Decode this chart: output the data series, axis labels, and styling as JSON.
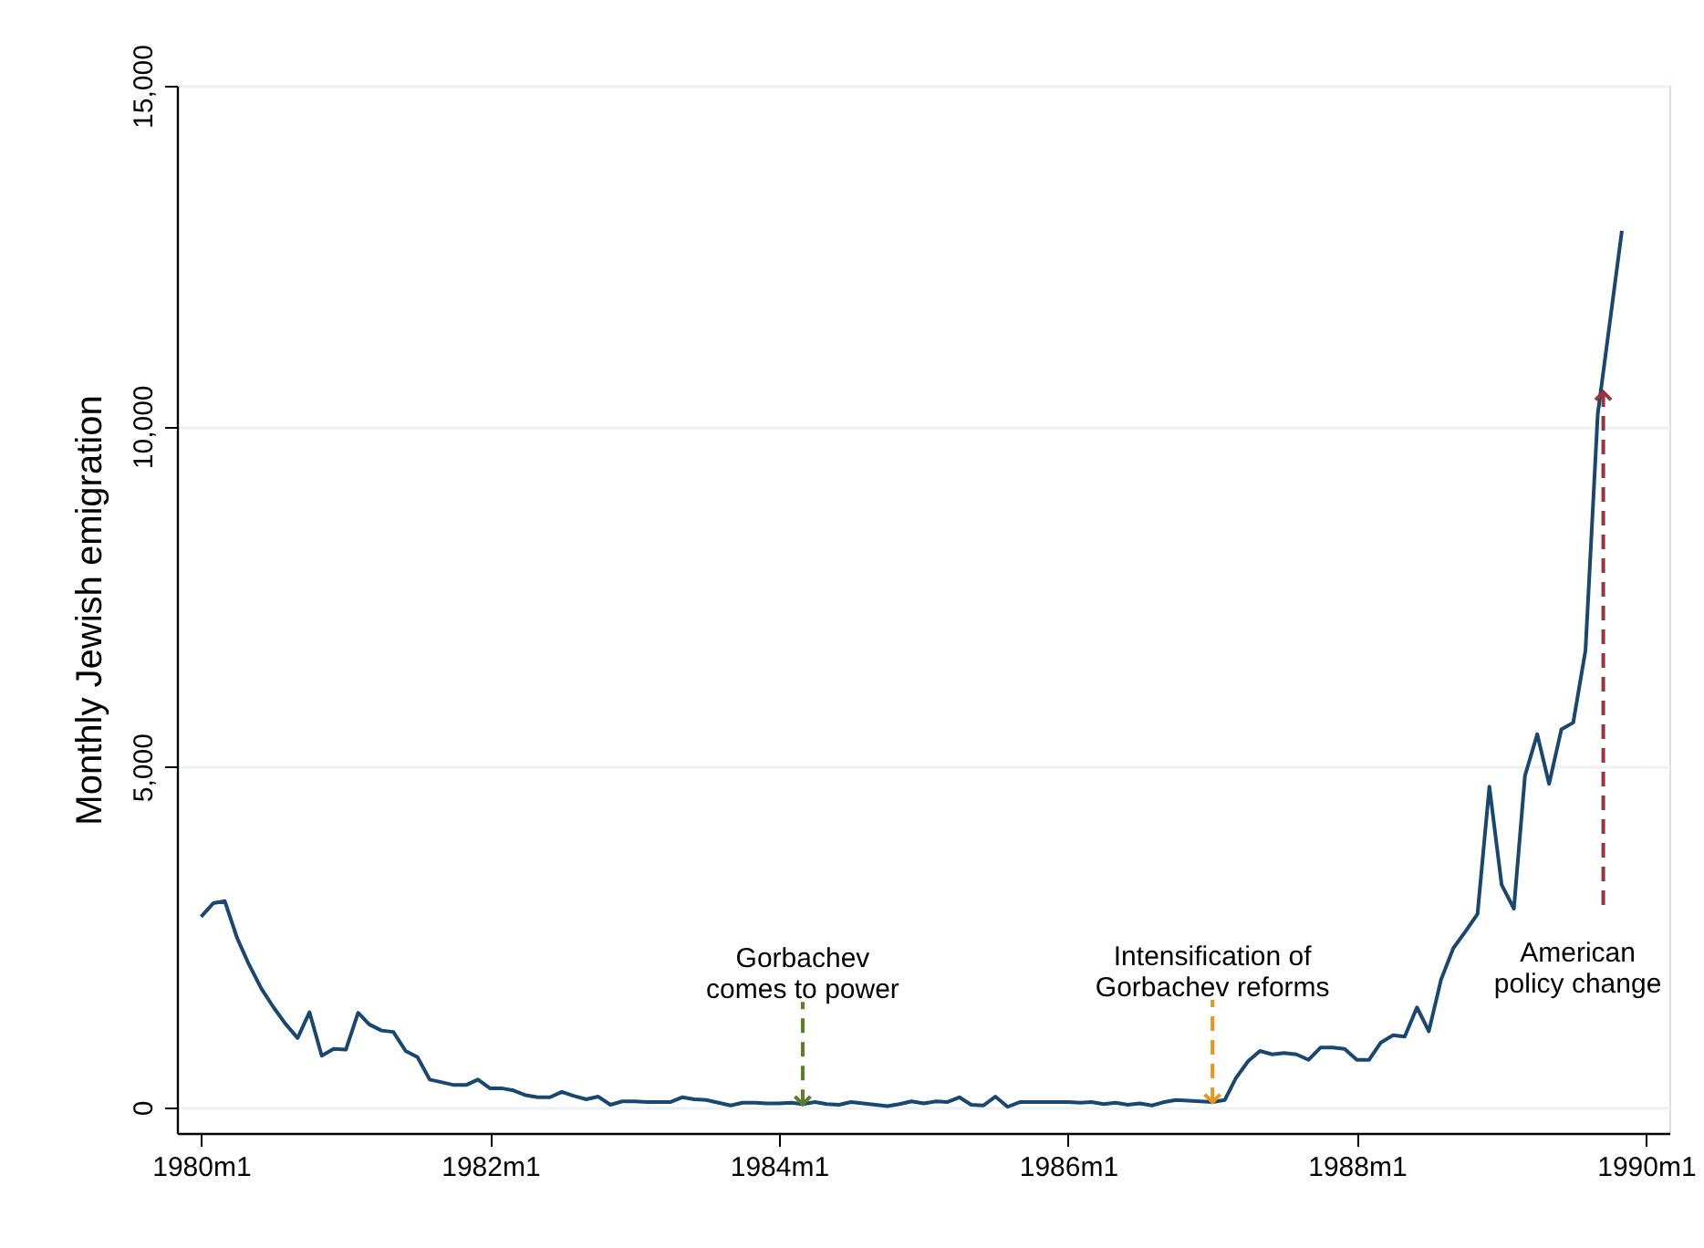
{
  "chart_data": {
    "type": "line",
    "ylabel": "Monthly Jewish emigration",
    "x": [
      "1980-01",
      "1980-02",
      "1980-03",
      "1980-04",
      "1980-05",
      "1980-06",
      "1980-07",
      "1980-08",
      "1980-09",
      "1980-10",
      "1980-11",
      "1980-12",
      "1981-01",
      "1981-02",
      "1981-03",
      "1981-04",
      "1981-05",
      "1981-06",
      "1981-07",
      "1981-08",
      "1981-09",
      "1981-10",
      "1981-11",
      "1981-12",
      "1982-01",
      "1982-02",
      "1982-03",
      "1982-04",
      "1982-05",
      "1982-06",
      "1982-07",
      "1982-08",
      "1982-09",
      "1982-10",
      "1982-11",
      "1982-12",
      "1983-01",
      "1983-02",
      "1983-03",
      "1983-04",
      "1983-05",
      "1983-06",
      "1983-07",
      "1983-08",
      "1983-09",
      "1983-10",
      "1983-11",
      "1983-12",
      "1984-01",
      "1984-02",
      "1984-03",
      "1984-04",
      "1984-05",
      "1984-06",
      "1984-07",
      "1984-08",
      "1984-09",
      "1984-10",
      "1984-11",
      "1984-12",
      "1985-01",
      "1985-02",
      "1985-03",
      "1985-04",
      "1985-05",
      "1985-06",
      "1985-07",
      "1985-08",
      "1985-09",
      "1985-10",
      "1985-11",
      "1985-12",
      "1986-01",
      "1986-02",
      "1986-03",
      "1986-04",
      "1986-05",
      "1986-06",
      "1986-07",
      "1986-08",
      "1986-09",
      "1986-10",
      "1986-11",
      "1986-12",
      "1987-01",
      "1987-02",
      "1987-03",
      "1987-04",
      "1987-05",
      "1987-06",
      "1987-07",
      "1987-08",
      "1987-09",
      "1987-10",
      "1987-11",
      "1987-12",
      "1988-01",
      "1988-02",
      "1988-03",
      "1988-04",
      "1988-05",
      "1988-06",
      "1988-07",
      "1988-08",
      "1988-09",
      "1988-10",
      "1988-11",
      "1988-12",
      "1989-01",
      "1989-02",
      "1989-03",
      "1989-04",
      "1989-05",
      "1989-06",
      "1989-07",
      "1989-08",
      "1989-09",
      "1989-10",
      "1989-11"
    ],
    "series": [
      {
        "color": "#1a476f",
        "values": [
          2800,
          3000,
          3030,
          2490,
          2100,
          1750,
          1480,
          1230,
          1020,
          1400,
          760,
          860,
          850,
          1390,
          1220,
          1130,
          1110,
          830,
          740,
          410,
          370,
          330,
          330,
          410,
          280,
          280,
          250,
          180,
          150,
          150,
          230,
          170,
          120,
          160,
          40,
          90,
          90,
          80,
          80,
          80,
          150,
          120,
          110,
          70,
          30,
          70,
          70,
          60,
          60,
          70,
          50,
          80,
          50,
          40,
          80,
          60,
          40,
          20,
          50,
          90,
          60,
          90,
          80,
          150,
          40,
          30,
          160,
          10,
          80,
          80,
          80,
          80,
          80,
          70,
          80,
          50,
          70,
          40,
          60,
          30,
          80,
          110,
          100,
          90,
          80,
          110,
          430,
          680,
          830,
          780,
          800,
          780,
          700,
          880,
          880,
          860,
          700,
          700,
          950,
          1060,
          1040,
          1470,
          1120,
          1880,
          2340,
          2580,
          2840,
          4710,
          3270,
          2920,
          4870,
          5480,
          4750,
          5550,
          5650,
          6710,
          10180,
          11500,
          12870
        ]
      }
    ],
    "xlim": [
      "1979-11",
      "1990-03"
    ],
    "xticks": [
      {
        "value": "1980-01",
        "label": "1980m1"
      },
      {
        "value": "1982-01",
        "label": "1982m1"
      },
      {
        "value": "1984-01",
        "label": "1984m1"
      },
      {
        "value": "1986-01",
        "label": "1986m1"
      },
      {
        "value": "1988-01",
        "label": "1988m1"
      },
      {
        "value": "1990-01",
        "label": "1990m1"
      }
    ],
    "ylim": [
      -375,
      15000
    ],
    "yticks": [
      {
        "value": 0,
        "label": "0"
      },
      {
        "value": 5000,
        "label": "5,000"
      },
      {
        "value": 10000,
        "label": "10,000"
      },
      {
        "value": 15000,
        "label": "15,000"
      }
    ],
    "grid": "y",
    "marker": "none",
    "line_style": "solid",
    "annotations": [
      {
        "text": "Gorbachev\ncomes to power",
        "x": "1984-03",
        "y": 50
      },
      {
        "text": "Intensification of\nGorbachev reforms",
        "x": "1987-01",
        "y": 80
      },
      {
        "text": "American\npolicy change",
        "x": "1989-09-15",
        "y": 10500
      }
    ]
  }
}
